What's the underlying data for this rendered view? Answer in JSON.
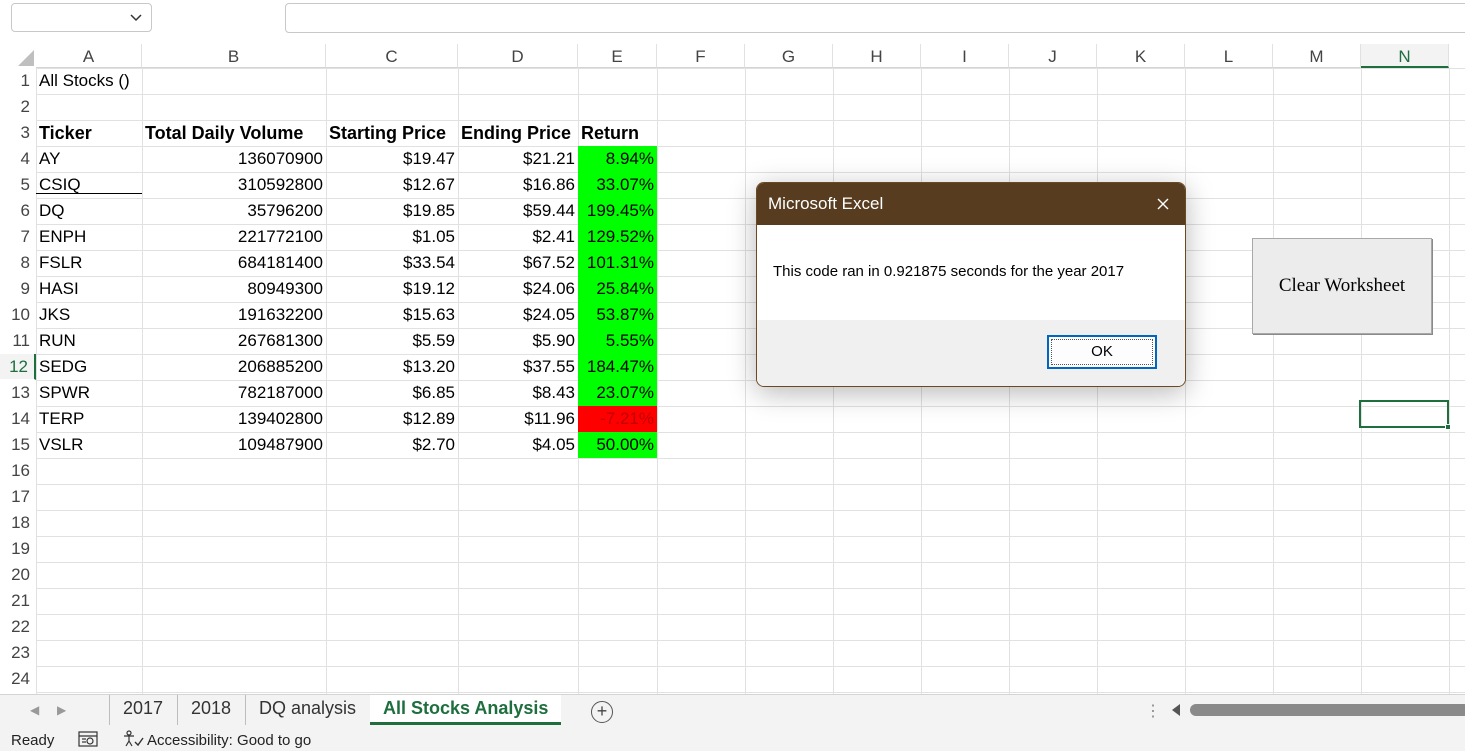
{
  "formula_bar": {
    "name_box": "",
    "formula": ""
  },
  "columns": [
    "A",
    "B",
    "C",
    "D",
    "E",
    "F",
    "G",
    "H",
    "I",
    "J",
    "K",
    "L",
    "M",
    "N"
  ],
  "rows": [
    "1",
    "2",
    "3",
    "4",
    "5",
    "6",
    "7",
    "8",
    "9",
    "10",
    "11",
    "12",
    "13",
    "14",
    "15",
    "16",
    "17",
    "18",
    "19",
    "20",
    "21",
    "22",
    "23",
    "24"
  ],
  "active_column": "N",
  "active_row": "12",
  "sheet": {
    "title": "All Stocks ()",
    "headers": [
      "Ticker",
      "Total Daily Volume",
      "Starting Price",
      "Ending Price",
      "Return"
    ],
    "data": [
      {
        "ticker": "AY",
        "volume": "136070900",
        "start": "$19.47",
        "end": "$21.21",
        "return": "8.94%",
        "positive": true
      },
      {
        "ticker": "CSIQ",
        "volume": "310592800",
        "start": "$12.67",
        "end": "$16.86",
        "return": "33.07%",
        "positive": true
      },
      {
        "ticker": "DQ",
        "volume": "35796200",
        "start": "$19.85",
        "end": "$59.44",
        "return": "199.45%",
        "positive": true
      },
      {
        "ticker": "ENPH",
        "volume": "221772100",
        "start": "$1.05",
        "end": "$2.41",
        "return": "129.52%",
        "positive": true
      },
      {
        "ticker": "FSLR",
        "volume": "684181400",
        "start": "$33.54",
        "end": "$67.52",
        "return": "101.31%",
        "positive": true
      },
      {
        "ticker": "HASI",
        "volume": "80949300",
        "start": "$19.12",
        "end": "$24.06",
        "return": "25.84%",
        "positive": true
      },
      {
        "ticker": "JKS",
        "volume": "191632200",
        "start": "$15.63",
        "end": "$24.05",
        "return": "53.87%",
        "positive": true
      },
      {
        "ticker": "RUN",
        "volume": "267681300",
        "start": "$5.59",
        "end": "$5.90",
        "return": "5.55%",
        "positive": true
      },
      {
        "ticker": "SEDG",
        "volume": "206885200",
        "start": "$13.20",
        "end": "$37.55",
        "return": "184.47%",
        "positive": true
      },
      {
        "ticker": "SPWR",
        "volume": "782187000",
        "start": "$6.85",
        "end": "$8.43",
        "return": "23.07%",
        "positive": true
      },
      {
        "ticker": "TERP",
        "volume": "139402800",
        "start": "$12.89",
        "end": "$11.96",
        "return": "-7.21%",
        "positive": false
      },
      {
        "ticker": "VSLR",
        "volume": "109487900",
        "start": "$2.70",
        "end": "$4.05",
        "return": "50.00%",
        "positive": true
      }
    ]
  },
  "clear_button": {
    "label": "Clear Worksheet"
  },
  "dialog": {
    "title": "Microsoft Excel",
    "message": "This code ran in 0.921875 seconds for the year 2017",
    "ok_label": "OK"
  },
  "tabs": [
    {
      "label": "2017",
      "active": false
    },
    {
      "label": "2018",
      "active": false
    },
    {
      "label": "DQ analysis",
      "active": false
    },
    {
      "label": "All Stocks Analysis",
      "active": true
    }
  ],
  "add_sheet_icon": "plus-circle-icon",
  "status": {
    "ready": "Ready",
    "accessibility": "Accessibility: Good to go"
  },
  "colors": {
    "positive_fill": "#00ff00",
    "negative_fill": "#ff0000",
    "negative_text": "#c00000",
    "dialog_title_bg": "#573c1f",
    "excel_green": "#1e6e3e"
  }
}
